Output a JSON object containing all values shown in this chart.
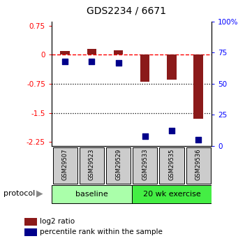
{
  "title": "GDS2234 / 6671",
  "samples": [
    "GSM29507",
    "GSM29523",
    "GSM29529",
    "GSM29533",
    "GSM29535",
    "GSM29536"
  ],
  "log2_ratio": [
    0.1,
    0.15,
    0.12,
    -0.7,
    -0.65,
    -1.65
  ],
  "percentile_rank": [
    68,
    68,
    67,
    8,
    12,
    5
  ],
  "bar_color": "#8B1A1A",
  "dot_color": "#00008B",
  "ylim_left": [
    -2.35,
    0.85
  ],
  "ylim_right": [
    0,
    100
  ],
  "yticks_left": [
    0.75,
    0.0,
    -0.75,
    -1.5,
    -2.25
  ],
  "yticks_right": [
    100,
    75,
    50,
    25,
    0
  ],
  "ytick_labels_left": [
    "0.75",
    "0",
    "-0.75",
    "-1.5",
    "-2.25"
  ],
  "ytick_labels_right": [
    "100%",
    "75",
    "50",
    "25",
    "0"
  ],
  "hline_y": 0.0,
  "dotted_lines": [
    -0.75,
    -1.5
  ],
  "baseline_label": "baseline",
  "exercise_label": "20 wk exercise",
  "protocol_label": "protocol",
  "legend_red": "log2 ratio",
  "legend_blue": "percentile rank within the sample",
  "bar_width": 0.35,
  "dot_size": 28,
  "baseline_color": "#aaffaa",
  "exercise_color": "#44ee44",
  "sample_box_color": "#cccccc"
}
